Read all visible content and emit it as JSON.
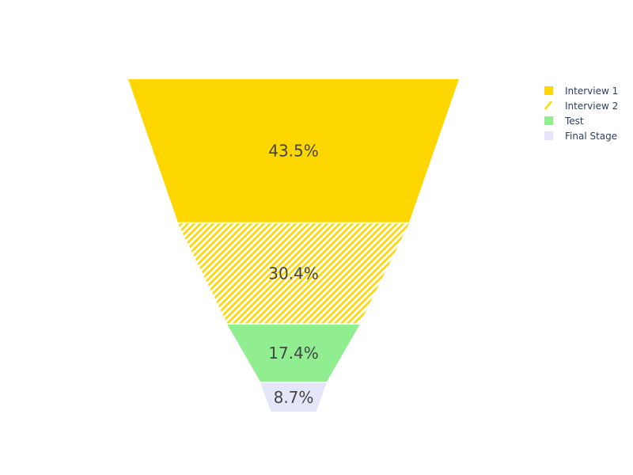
{
  "chart_data": {
    "type": "funnel",
    "categories": [
      "Interview 1",
      "Interview 2",
      "Test",
      "Final Stage"
    ],
    "values": [
      43.5,
      30.4,
      17.4,
      8.7
    ],
    "labels": [
      "43.5%",
      "30.4%",
      "17.4%",
      "8.7%"
    ],
    "colors": [
      "#ffd700",
      "#ffd700",
      "#90ee90",
      "#e6e6fa"
    ],
    "patterns": [
      "solid",
      "diagonal-hatch",
      "solid",
      "solid"
    ],
    "legend": {
      "placement": "top-right",
      "entries": [
        "Interview 1",
        "Interview 2",
        "Test",
        "Final Stage"
      ]
    },
    "title": "",
    "xlabel": "",
    "ylabel": ""
  }
}
